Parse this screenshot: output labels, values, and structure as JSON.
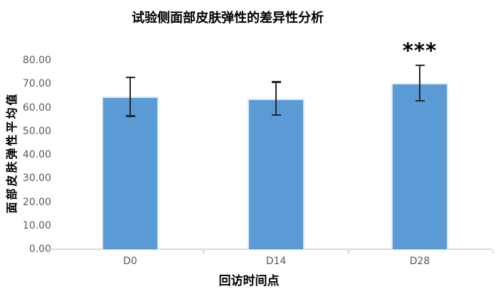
{
  "chart_data": {
    "type": "bar",
    "title": "试验侧面部皮肤弹性的差异性分析",
    "xlabel": "回访时间点",
    "ylabel": "面部皮肤弹性平均值",
    "categories": [
      "D0",
      "D14",
      "D28"
    ],
    "values": [
      64.7,
      63.9,
      70.4
    ],
    "error_bars": [
      8.2,
      7.0,
      7.5
    ],
    "ylim": [
      0,
      80
    ],
    "ytick_step": 10,
    "ytick_labels": [
      "0.00",
      "10.00",
      "20.00",
      "30.00",
      "40.00",
      "50.00",
      "60.00",
      "70.00",
      "80.00"
    ],
    "annotations": [
      {
        "text": "***",
        "category": "D28"
      }
    ],
    "grid": false,
    "legend": "none",
    "colors": {
      "bar_fill": "#5B9BD5",
      "bar_border": "#D8E6F4",
      "error_bar": "#262626",
      "axis_line": "#D9D9D9",
      "tick_label": "#595959",
      "title_text": "#000000",
      "background": "#FFFFFF"
    }
  }
}
